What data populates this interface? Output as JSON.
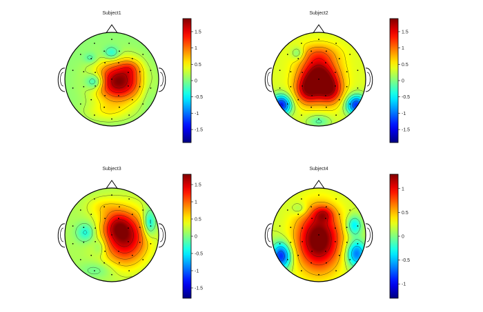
{
  "chart_data": {
    "type": "heatmap",
    "subtype": "eeg-scalp-topography",
    "colormap": "jet",
    "electrode_count_approx": 32,
    "panels": [
      {
        "title": "Subject1",
        "colorbar": {
          "min": -1.9,
          "max": 1.9,
          "ticks": [
            "1.5",
            "1",
            "0.5",
            "0",
            "-0.5",
            "-1",
            "-1.5"
          ],
          "tick_values": [
            1.5,
            1,
            0.5,
            0,
            -0.5,
            -1,
            -1.5
          ]
        },
        "sources": [
          {
            "u": 0.15,
            "v": -0.05,
            "sx": 0.36,
            "sy": 0.3,
            "a": 1.85
          },
          {
            "u": -0.35,
            "v": -0.05,
            "sx": 0.14,
            "sy": 0.12,
            "a": -0.85
          },
          {
            "u": 0.0,
            "v": 0.55,
            "sx": 0.12,
            "sy": 0.1,
            "a": -0.55
          },
          {
            "u": -0.45,
            "v": 0.45,
            "sx": 0.1,
            "sy": 0.08,
            "a": -0.3
          },
          {
            "u": 0.4,
            "v": 0.25,
            "sx": 0.15,
            "sy": 0.12,
            "a": 0.4
          },
          {
            "u": -0.1,
            "v": -0.7,
            "sx": 0.35,
            "sy": 0.15,
            "a": 0.35
          },
          {
            "u": 0.75,
            "v": -0.15,
            "sx": 0.12,
            "sy": 0.3,
            "a": -0.2
          }
        ],
        "baseline": 0.05
      },
      {
        "title": "Subject2",
        "colorbar": {
          "min": -1.9,
          "max": 1.9,
          "ticks": [
            "1.5",
            "1",
            "0.5",
            "0",
            "-0.5",
            "-1",
            "-1.5"
          ],
          "tick_values": [
            1.5,
            1,
            0.5,
            0,
            -0.5,
            -1,
            -1.5
          ]
        },
        "sources": [
          {
            "u": 0.0,
            "v": 0.05,
            "sx": 0.28,
            "sy": 0.3,
            "a": 1.75
          },
          {
            "u": -0.25,
            "v": -0.25,
            "sx": 0.18,
            "sy": 0.2,
            "a": 0.9
          },
          {
            "u": 0.25,
            "v": -0.25,
            "sx": 0.18,
            "sy": 0.2,
            "a": 0.9
          },
          {
            "u": -0.8,
            "v": -0.55,
            "sx": 0.15,
            "sy": 0.15,
            "a": -1.7
          },
          {
            "u": 0.8,
            "v": -0.55,
            "sx": 0.15,
            "sy": 0.15,
            "a": -1.6
          },
          {
            "u": 0.0,
            "v": -0.9,
            "sx": 0.18,
            "sy": 0.1,
            "a": -0.5
          },
          {
            "u": -0.45,
            "v": 0.55,
            "sx": 0.1,
            "sy": 0.1,
            "a": -0.5
          },
          {
            "u": 0.0,
            "v": 0.55,
            "sx": 0.3,
            "sy": 0.15,
            "a": 0.4
          }
        ],
        "baseline": 0.35
      },
      {
        "title": "Subject3",
        "colorbar": {
          "min": -1.8,
          "max": 1.8,
          "ticks": [
            "1.5",
            "1",
            "0.5",
            "0",
            "-0.5",
            "-1",
            "-1.5"
          ],
          "tick_values": [
            1.5,
            1,
            0.5,
            0,
            -0.5,
            -1,
            -1.5
          ]
        },
        "sources": [
          {
            "u": 0.28,
            "v": -0.05,
            "sx": 0.34,
            "sy": 0.4,
            "a": 1.5
          },
          {
            "u": 0.1,
            "v": 0.2,
            "sx": 0.2,
            "sy": 0.2,
            "a": 0.55
          },
          {
            "u": -0.55,
            "v": 0.05,
            "sx": 0.14,
            "sy": 0.14,
            "a": -0.55
          },
          {
            "u": -0.25,
            "v": -0.25,
            "sx": 0.1,
            "sy": 0.14,
            "a": -0.35
          },
          {
            "u": 0.8,
            "v": 0.25,
            "sx": 0.1,
            "sy": 0.2,
            "a": -0.8
          },
          {
            "u": -0.2,
            "v": 0.6,
            "sx": 0.25,
            "sy": 0.15,
            "a": 0.3
          },
          {
            "u": -0.3,
            "v": -0.75,
            "sx": 0.25,
            "sy": 0.12,
            "a": -0.25
          }
        ],
        "baseline": 0.15
      },
      {
        "title": "Subject4",
        "colorbar": {
          "min": -1.3,
          "max": 1.3,
          "ticks": [
            "1",
            "0.5",
            "0",
            "-0.5",
            "-1"
          ],
          "tick_values": [
            1,
            0.5,
            0,
            -0.5,
            -1
          ]
        },
        "sources": [
          {
            "u": 0.0,
            "v": -0.1,
            "sx": 0.33,
            "sy": 0.45,
            "a": 1.25
          },
          {
            "u": 0.1,
            "v": 0.45,
            "sx": 0.15,
            "sy": 0.12,
            "a": 0.45
          },
          {
            "u": -0.8,
            "v": -0.45,
            "sx": 0.15,
            "sy": 0.2,
            "a": -1.1
          },
          {
            "u": 0.8,
            "v": -0.4,
            "sx": 0.15,
            "sy": 0.2,
            "a": -0.9
          },
          {
            "u": 0.75,
            "v": 0.2,
            "sx": 0.12,
            "sy": 0.15,
            "a": -0.6
          },
          {
            "u": -0.4,
            "v": 0.55,
            "sx": 0.12,
            "sy": 0.1,
            "a": -0.25
          }
        ],
        "baseline": 0.2
      }
    ],
    "colors": {
      "background": "#ffffff",
      "outline": "#000000"
    }
  }
}
